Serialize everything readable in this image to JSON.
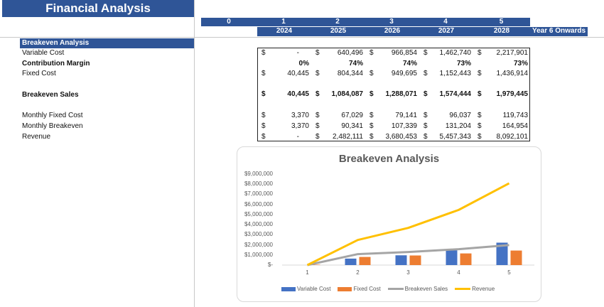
{
  "header": {
    "title": "Financial Analysis",
    "period_numbers": [
      "0",
      "1",
      "2",
      "3",
      "4",
      "5"
    ],
    "years": [
      "2024",
      "2025",
      "2026",
      "2027",
      "2028"
    ],
    "year6_label": "Year 6 Onwards"
  },
  "section": {
    "title": "Breakeven Analysis",
    "rows": [
      {
        "label": "Variable Cost",
        "bold": false,
        "dollar": true,
        "values": [
          "-",
          "640,496",
          "966,854",
          "1,462,740",
          "2,217,901"
        ]
      },
      {
        "label": "Contribution Margin",
        "bold": true,
        "dollar": false,
        "values": [
          "0%",
          "74%",
          "74%",
          "73%",
          "73%"
        ]
      },
      {
        "label": "Fixed Cost",
        "bold": false,
        "dollar": true,
        "values": [
          "40,445",
          "804,344",
          "949,695",
          "1,152,443",
          "1,436,914"
        ]
      },
      {
        "label": "Breakeven Sales",
        "bold": true,
        "dollar": true,
        "values": [
          "40,445",
          "1,084,087",
          "1,288,071",
          "1,574,444",
          "1,979,445"
        ]
      },
      {
        "label": "Monthly Fixed Cost",
        "bold": false,
        "dollar": true,
        "values": [
          "3,370",
          "67,029",
          "79,141",
          "96,037",
          "119,743"
        ]
      },
      {
        "label": "Monthly Breakeven",
        "bold": false,
        "dollar": true,
        "values": [
          "3,370",
          "90,341",
          "107,339",
          "131,204",
          "164,954"
        ]
      },
      {
        "label": "Revenue",
        "bold": false,
        "dollar": true,
        "values": [
          "-",
          "2,482,111",
          "3,680,453",
          "5,457,343",
          "8,092,101"
        ]
      }
    ],
    "currency_symbol": "$"
  },
  "colors": {
    "header_blue": "#2f5597",
    "variable_cost": "#4472c4",
    "fixed_cost": "#ed7d31",
    "breakeven_sales": "#a5a5a5",
    "revenue": "#ffc000"
  },
  "chart_data": {
    "type": "bar",
    "title": "Breakeven Analysis",
    "categories": [
      "1",
      "2",
      "3",
      "4",
      "5"
    ],
    "series": [
      {
        "name": "Variable Cost",
        "kind": "bar",
        "values": [
          0,
          640496,
          966854,
          1462740,
          2217901
        ]
      },
      {
        "name": "Fixed Cost",
        "kind": "bar",
        "values": [
          40445,
          804344,
          949695,
          1152443,
          1436914
        ]
      },
      {
        "name": "Breakeven Sales",
        "kind": "line",
        "values": [
          40445,
          1084087,
          1288071,
          1574444,
          1979445
        ]
      },
      {
        "name": "Revenue",
        "kind": "line",
        "values": [
          0,
          2482111,
          3680453,
          5457343,
          8092101
        ]
      }
    ],
    "yticks": [
      "$9,000,000",
      "$8,000,000",
      "$7,000,000",
      "$6,000,000",
      "$5,000,000",
      "$4,000,000",
      "$3,000,000",
      "$2,000,000",
      "$1,000,000",
      "$-"
    ],
    "ylim": [
      0,
      9000000
    ],
    "xlabel": "",
    "ylabel": "",
    "legend_position": "bottom",
    "grid": false
  }
}
